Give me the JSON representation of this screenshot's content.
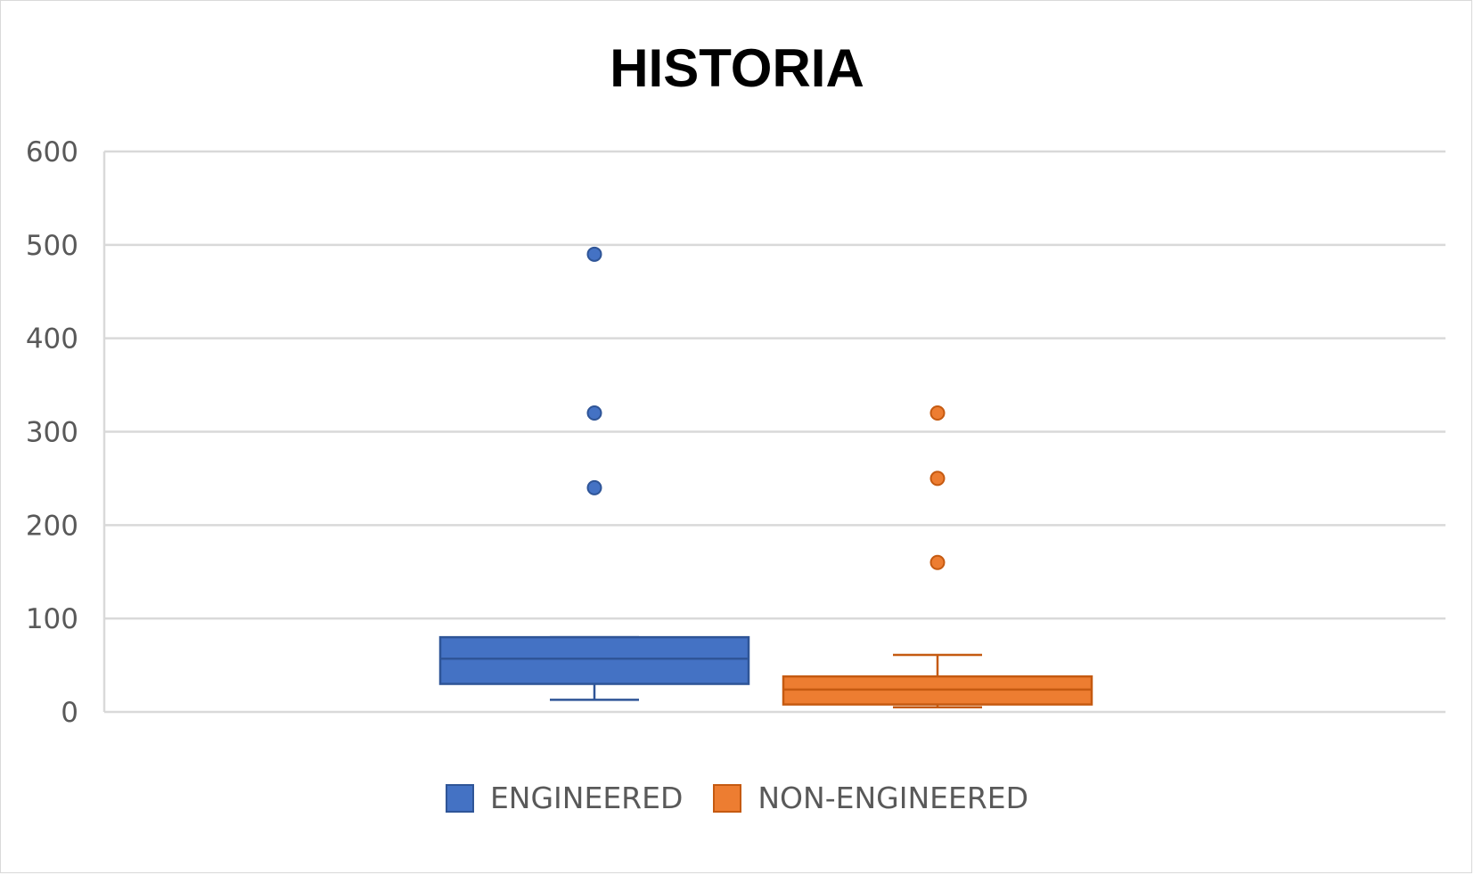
{
  "chart_data": {
    "type": "box",
    "title": "HISTORIA",
    "xlabel": "",
    "ylabel": "",
    "ylim": [
      0,
      600
    ],
    "yticks": [
      "0",
      "100",
      "200",
      "300",
      "400",
      "500",
      "600"
    ],
    "grid": true,
    "legend_position": "bottom",
    "series": [
      {
        "name": "ENGINEERED",
        "color": "#4472c4",
        "border": "#2f5597",
        "min": 13,
        "q1": 30,
        "median": 57,
        "q3": 80,
        "max": 80,
        "outliers": [
          240,
          320,
          490
        ]
      },
      {
        "name": "NON-ENGINEERED",
        "color": "#ed7d31",
        "border": "#c55a11",
        "min": 5,
        "q1": 8,
        "median": 24,
        "q3": 38,
        "max": 61,
        "outliers": [
          160,
          250,
          320
        ]
      }
    ]
  }
}
